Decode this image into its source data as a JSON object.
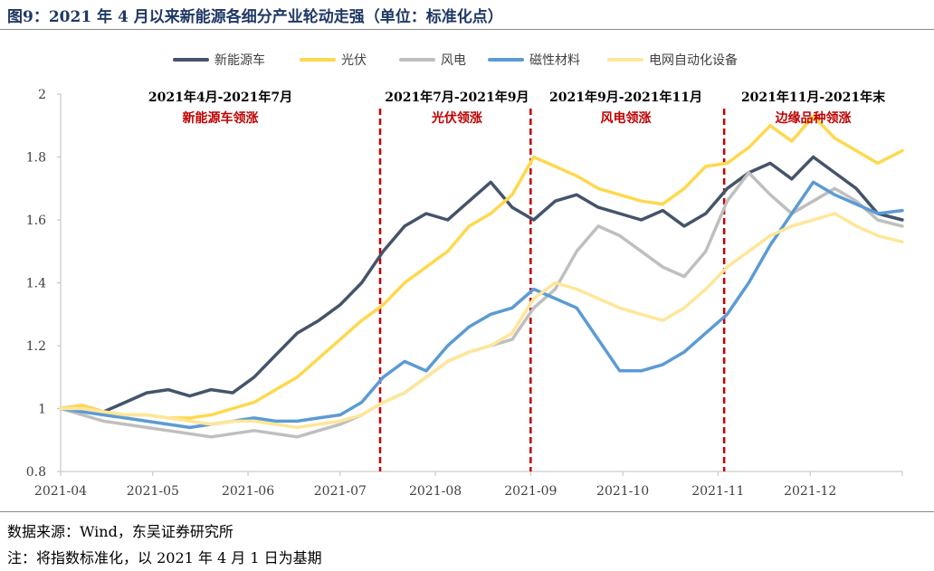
{
  "title": "图9：2021 年 4 月以来新能源各细分产业轮动走强（单位：标准化点）",
  "source": "数据来源：Wind，东吴证券研究所",
  "note": "注：将指数标准化，以 2021 年 4 月 1 日为基期",
  "chart_data": {
    "type": "line",
    "x_ticks": [
      "2021-04",
      "2021-05",
      "2021-06",
      "2021-07",
      "2021-08",
      "2021-09",
      "2021-10",
      "2021-11",
      "2021-12"
    ],
    "y_ticks": [
      "0.8",
      "1",
      "1.2",
      "1.4",
      "1.6",
      "1.8",
      "2"
    ],
    "ylim": [
      0.8,
      2.0
    ],
    "xlim": [
      "2021-04-01",
      "2021-12-31"
    ],
    "legend_position": "top",
    "series": [
      {
        "name": "新能源车",
        "color": "#44546a",
        "points": [
          [
            "2021-04-01",
            1.0
          ],
          [
            "2021-04-08",
            1.01
          ],
          [
            "2021-04-15",
            0.99
          ],
          [
            "2021-04-22",
            1.02
          ],
          [
            "2021-04-29",
            1.05
          ],
          [
            "2021-05-06",
            1.06
          ],
          [
            "2021-05-13",
            1.04
          ],
          [
            "2021-05-20",
            1.06
          ],
          [
            "2021-05-27",
            1.05
          ],
          [
            "2021-06-03",
            1.1
          ],
          [
            "2021-06-10",
            1.17
          ],
          [
            "2021-06-17",
            1.24
          ],
          [
            "2021-06-24",
            1.28
          ],
          [
            "2021-07-01",
            1.33
          ],
          [
            "2021-07-08",
            1.4
          ],
          [
            "2021-07-15",
            1.5
          ],
          [
            "2021-07-22",
            1.58
          ],
          [
            "2021-07-29",
            1.62
          ],
          [
            "2021-08-05",
            1.6
          ],
          [
            "2021-08-12",
            1.66
          ],
          [
            "2021-08-19",
            1.72
          ],
          [
            "2021-08-26",
            1.64
          ],
          [
            "2021-09-02",
            1.6
          ],
          [
            "2021-09-09",
            1.66
          ],
          [
            "2021-09-16",
            1.68
          ],
          [
            "2021-09-23",
            1.64
          ],
          [
            "2021-09-30",
            1.62
          ],
          [
            "2021-10-07",
            1.6
          ],
          [
            "2021-10-14",
            1.63
          ],
          [
            "2021-10-21",
            1.58
          ],
          [
            "2021-10-28",
            1.62
          ],
          [
            "2021-11-04",
            1.7
          ],
          [
            "2021-11-11",
            1.75
          ],
          [
            "2021-11-18",
            1.78
          ],
          [
            "2021-11-25",
            1.73
          ],
          [
            "2021-12-02",
            1.8
          ],
          [
            "2021-12-09",
            1.75
          ],
          [
            "2021-12-16",
            1.7
          ],
          [
            "2021-12-23",
            1.62
          ],
          [
            "2021-12-31",
            1.6
          ]
        ]
      },
      {
        "name": "光伏",
        "color": "#ffd84d",
        "points": [
          [
            "2021-04-01",
            1.0
          ],
          [
            "2021-04-08",
            1.01
          ],
          [
            "2021-04-15",
            0.99
          ],
          [
            "2021-04-22",
            0.98
          ],
          [
            "2021-04-29",
            0.98
          ],
          [
            "2021-05-06",
            0.97
          ],
          [
            "2021-05-13",
            0.97
          ],
          [
            "2021-05-20",
            0.98
          ],
          [
            "2021-05-27",
            1.0
          ],
          [
            "2021-06-03",
            1.02
          ],
          [
            "2021-06-10",
            1.06
          ],
          [
            "2021-06-17",
            1.1
          ],
          [
            "2021-06-24",
            1.16
          ],
          [
            "2021-07-01",
            1.22
          ],
          [
            "2021-07-08",
            1.28
          ],
          [
            "2021-07-15",
            1.33
          ],
          [
            "2021-07-22",
            1.4
          ],
          [
            "2021-07-29",
            1.45
          ],
          [
            "2021-08-05",
            1.5
          ],
          [
            "2021-08-12",
            1.58
          ],
          [
            "2021-08-19",
            1.62
          ],
          [
            "2021-08-26",
            1.68
          ],
          [
            "2021-09-02",
            1.8
          ],
          [
            "2021-09-09",
            1.77
          ],
          [
            "2021-09-16",
            1.74
          ],
          [
            "2021-09-23",
            1.7
          ],
          [
            "2021-09-30",
            1.68
          ],
          [
            "2021-10-07",
            1.66
          ],
          [
            "2021-10-14",
            1.65
          ],
          [
            "2021-10-21",
            1.7
          ],
          [
            "2021-10-28",
            1.77
          ],
          [
            "2021-11-04",
            1.78
          ],
          [
            "2021-11-11",
            1.83
          ],
          [
            "2021-11-18",
            1.9
          ],
          [
            "2021-11-25",
            1.85
          ],
          [
            "2021-12-02",
            1.93
          ],
          [
            "2021-12-09",
            1.86
          ],
          [
            "2021-12-16",
            1.82
          ],
          [
            "2021-12-23",
            1.78
          ],
          [
            "2021-12-31",
            1.82
          ]
        ]
      },
      {
        "name": "风电",
        "color": "#bfbfbf",
        "points": [
          [
            "2021-04-01",
            1.0
          ],
          [
            "2021-04-08",
            0.98
          ],
          [
            "2021-04-15",
            0.96
          ],
          [
            "2021-04-22",
            0.95
          ],
          [
            "2021-04-29",
            0.94
          ],
          [
            "2021-05-06",
            0.93
          ],
          [
            "2021-05-13",
            0.92
          ],
          [
            "2021-05-20",
            0.91
          ],
          [
            "2021-05-27",
            0.92
          ],
          [
            "2021-06-03",
            0.93
          ],
          [
            "2021-06-10",
            0.92
          ],
          [
            "2021-06-17",
            0.91
          ],
          [
            "2021-06-24",
            0.93
          ],
          [
            "2021-07-01",
            0.95
          ],
          [
            "2021-07-08",
            0.98
          ],
          [
            "2021-07-15",
            1.02
          ],
          [
            "2021-07-22",
            1.05
          ],
          [
            "2021-07-29",
            1.1
          ],
          [
            "2021-08-05",
            1.15
          ],
          [
            "2021-08-12",
            1.18
          ],
          [
            "2021-08-19",
            1.2
          ],
          [
            "2021-08-26",
            1.22
          ],
          [
            "2021-09-02",
            1.32
          ],
          [
            "2021-09-09",
            1.38
          ],
          [
            "2021-09-16",
            1.5
          ],
          [
            "2021-09-23",
            1.58
          ],
          [
            "2021-09-30",
            1.55
          ],
          [
            "2021-10-07",
            1.5
          ],
          [
            "2021-10-14",
            1.45
          ],
          [
            "2021-10-21",
            1.42
          ],
          [
            "2021-10-28",
            1.5
          ],
          [
            "2021-11-04",
            1.66
          ],
          [
            "2021-11-11",
            1.75
          ],
          [
            "2021-11-18",
            1.68
          ],
          [
            "2021-11-25",
            1.62
          ],
          [
            "2021-12-02",
            1.66
          ],
          [
            "2021-12-09",
            1.7
          ],
          [
            "2021-12-16",
            1.66
          ],
          [
            "2021-12-23",
            1.6
          ],
          [
            "2021-12-31",
            1.58
          ]
        ]
      },
      {
        "name": "磁性材料",
        "color": "#5b9bd5",
        "points": [
          [
            "2021-04-01",
            1.0
          ],
          [
            "2021-04-08",
            0.99
          ],
          [
            "2021-04-15",
            0.98
          ],
          [
            "2021-04-22",
            0.97
          ],
          [
            "2021-04-29",
            0.96
          ],
          [
            "2021-05-06",
            0.95
          ],
          [
            "2021-05-13",
            0.94
          ],
          [
            "2021-05-20",
            0.95
          ],
          [
            "2021-05-27",
            0.96
          ],
          [
            "2021-06-03",
            0.97
          ],
          [
            "2021-06-10",
            0.96
          ],
          [
            "2021-06-17",
            0.96
          ],
          [
            "2021-06-24",
            0.97
          ],
          [
            "2021-07-01",
            0.98
          ],
          [
            "2021-07-08",
            1.02
          ],
          [
            "2021-07-15",
            1.1
          ],
          [
            "2021-07-22",
            1.15
          ],
          [
            "2021-07-29",
            1.12
          ],
          [
            "2021-08-05",
            1.2
          ],
          [
            "2021-08-12",
            1.26
          ],
          [
            "2021-08-19",
            1.3
          ],
          [
            "2021-08-26",
            1.32
          ],
          [
            "2021-09-02",
            1.38
          ],
          [
            "2021-09-09",
            1.35
          ],
          [
            "2021-09-16",
            1.32
          ],
          [
            "2021-09-23",
            1.22
          ],
          [
            "2021-09-30",
            1.12
          ],
          [
            "2021-10-07",
            1.12
          ],
          [
            "2021-10-14",
            1.14
          ],
          [
            "2021-10-21",
            1.18
          ],
          [
            "2021-10-28",
            1.24
          ],
          [
            "2021-11-04",
            1.3
          ],
          [
            "2021-11-11",
            1.4
          ],
          [
            "2021-11-18",
            1.52
          ],
          [
            "2021-11-25",
            1.62
          ],
          [
            "2021-12-02",
            1.72
          ],
          [
            "2021-12-09",
            1.68
          ],
          [
            "2021-12-16",
            1.65
          ],
          [
            "2021-12-23",
            1.62
          ],
          [
            "2021-12-31",
            1.63
          ]
        ]
      },
      {
        "name": "电网自动化设备",
        "color": "#ffe699",
        "points": [
          [
            "2021-04-01",
            1.0
          ],
          [
            "2021-04-08",
            1.0
          ],
          [
            "2021-04-15",
            0.99
          ],
          [
            "2021-04-22",
            0.98
          ],
          [
            "2021-04-29",
            0.98
          ],
          [
            "2021-05-06",
            0.97
          ],
          [
            "2021-05-13",
            0.96
          ],
          [
            "2021-05-20",
            0.95
          ],
          [
            "2021-05-27",
            0.96
          ],
          [
            "2021-06-03",
            0.96
          ],
          [
            "2021-06-10",
            0.95
          ],
          [
            "2021-06-17",
            0.94
          ],
          [
            "2021-06-24",
            0.95
          ],
          [
            "2021-07-01",
            0.96
          ],
          [
            "2021-07-08",
            0.98
          ],
          [
            "2021-07-15",
            1.02
          ],
          [
            "2021-07-22",
            1.05
          ],
          [
            "2021-07-29",
            1.1
          ],
          [
            "2021-08-05",
            1.15
          ],
          [
            "2021-08-12",
            1.18
          ],
          [
            "2021-08-19",
            1.2
          ],
          [
            "2021-08-26",
            1.24
          ],
          [
            "2021-09-02",
            1.35
          ],
          [
            "2021-09-09",
            1.4
          ],
          [
            "2021-09-16",
            1.38
          ],
          [
            "2021-09-23",
            1.35
          ],
          [
            "2021-09-30",
            1.32
          ],
          [
            "2021-10-07",
            1.3
          ],
          [
            "2021-10-14",
            1.28
          ],
          [
            "2021-10-21",
            1.32
          ],
          [
            "2021-10-28",
            1.38
          ],
          [
            "2021-11-04",
            1.45
          ],
          [
            "2021-11-11",
            1.5
          ],
          [
            "2021-11-18",
            1.55
          ],
          [
            "2021-11-25",
            1.58
          ],
          [
            "2021-12-02",
            1.6
          ],
          [
            "2021-12-09",
            1.62
          ],
          [
            "2021-12-16",
            1.58
          ],
          [
            "2021-12-23",
            1.55
          ],
          [
            "2021-12-31",
            1.53
          ]
        ]
      }
    ],
    "dividers": [
      "2021-07-14",
      "2021-09-01",
      "2021-11-03"
    ],
    "periods": [
      {
        "title": "2021年4月-2021年7月",
        "subtitle": "新能源车领涨",
        "center": "2021-05-23"
      },
      {
        "title": "2021年7月-2021年9月",
        "subtitle": "光伏领涨",
        "center": "2021-08-08"
      },
      {
        "title": "2021年9月-2021年11月",
        "subtitle": "风电领涨",
        "center": "2021-10-02"
      },
      {
        "title": "2021年11月-2021年末",
        "subtitle": "边缘品种领涨",
        "center": "2021-12-02"
      }
    ],
    "annotation_color": "#c00000",
    "grid": false
  }
}
